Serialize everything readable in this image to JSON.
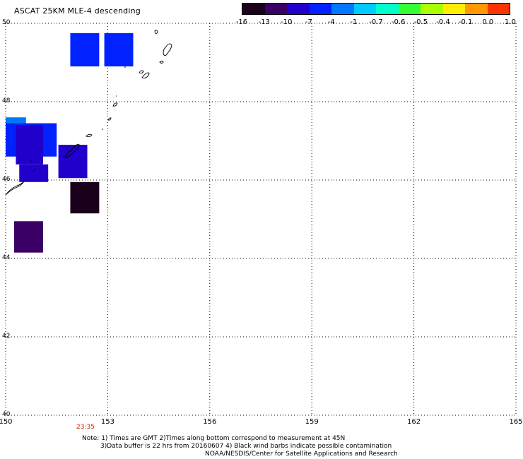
{
  "title": "ASCAT 25KM MLE-4 descending",
  "colorbar": {
    "labels": [
      "-16",
      "-13",
      "-10",
      "-7",
      "-4",
      "-1",
      "-0.7",
      "-0.6",
      "-0.5",
      "-0.4",
      "-0.1",
      "0.0",
      "1.0"
    ],
    "colors": [
      "#1a001a",
      "#3a0066",
      "#2200cc",
      "#0022ff",
      "#0077ff",
      "#00ccff",
      "#00ffcc",
      "#33ff33",
      "#aaff00",
      "#ffee00",
      "#ff9900",
      "#ff3300"
    ]
  },
  "axes": {
    "lat_labels": [
      "50",
      "48",
      "46",
      "44",
      "42",
      "40"
    ],
    "lon_labels": [
      "150",
      "153",
      "156",
      "159",
      "162",
      "165"
    ]
  },
  "time_label": "23:35",
  "notes": {
    "line1": "Note: 1) Times are GMT 2)Times along bottom correspond to measurement at 45N",
    "line2": "3)Data buffer is 22 hrs from 20160607 4) Black wind barbs indicate possible contamination",
    "line3": "NOAA/NESDIS/Center for Satellite Applications and Research"
  },
  "map_data": {
    "lon_range": [
      150,
      165
    ],
    "lat_range": [
      40,
      50
    ],
    "cells": [
      {
        "lon0": 151.9,
        "lon1": 152.75,
        "lat0": 48.9,
        "lat1": 49.75,
        "value": -7
      },
      {
        "lon0": 152.9,
        "lon1": 153.75,
        "lat0": 48.9,
        "lat1": 49.75,
        "value": -7
      },
      {
        "lon0": 150.0,
        "lon1": 150.6,
        "lat0": 47.4,
        "lat1": 47.6,
        "value": -4
      },
      {
        "lon0": 150.0,
        "lon1": 151.5,
        "lat0": 46.6,
        "lat1": 47.45,
        "value": -7
      },
      {
        "lon0": 150.3,
        "lon1": 151.1,
        "lat0": 46.4,
        "lat1": 47.4,
        "value": -8
      },
      {
        "lon0": 150.4,
        "lon1": 151.25,
        "lat0": 45.95,
        "lat1": 46.4,
        "value": -8
      },
      {
        "lon0": 151.55,
        "lon1": 152.4,
        "lat0": 46.05,
        "lat1": 46.9,
        "value": -9
      },
      {
        "lon0": 151.9,
        "lon1": 152.75,
        "lat0": 45.15,
        "lat1": 45.95,
        "value": -16
      },
      {
        "lon0": 150.25,
        "lon1": 151.1,
        "lat0": 44.15,
        "lat1": 44.95,
        "value": -11
      }
    ]
  }
}
